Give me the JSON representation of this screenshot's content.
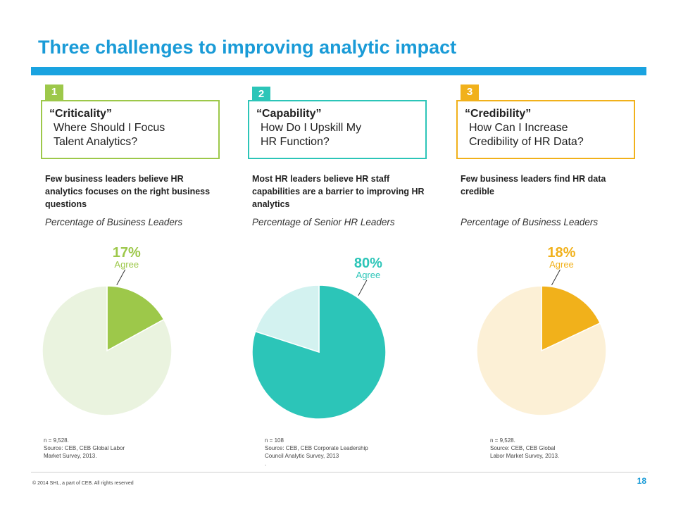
{
  "slide": {
    "title": "Three challenges to improving analytic impact",
    "copyright": "© 2014  SHL, a part of CEB.  All rights reserved",
    "page_number": "18"
  },
  "colors": {
    "title": "#1a9bd7",
    "bar": "#1aa3e0",
    "green": "#9dc84a",
    "green_light": "#eaf3df",
    "teal": "#2cc5b8",
    "teal_light": "#d3f2f0",
    "amber": "#f1b11b",
    "amber_light": "#fcf0d6"
  },
  "challenges": [
    {
      "number": "1",
      "heading": "“Criticality”",
      "question": "Where Should I Focus\nTalent Analytics?",
      "finding": "Few business leaders believe HR analytics focuses on the right business questions",
      "population": "Percentage of Business Leaders",
      "note": "n = 9,528.\nSource: CEB, CEB Global Labor\nMarket Survey, 2013."
    },
    {
      "number": "2",
      "heading": "“Capability”",
      "question": "How Do I Upskill My\nHR Function?",
      "finding": "Most HR leaders believe HR staff capabilities are a barrier to improving HR analytics",
      "population": "Percentage of Senior HR Leaders",
      "note": "n = 108\nSource: CEB, CEB Corporate Leadership\nCouncil  Analytic Survey, 2013\n."
    },
    {
      "number": "3",
      "heading": "“Credibility”",
      "question": "How Can I Increase\nCredibility of HR Data?",
      "finding": "Few business leaders find HR data credible",
      "population": "Percentage of Business Leaders",
      "note": "n = 9,528.\nSource: CEB, CEB Global\nLabor Market Survey, 2013."
    }
  ],
  "chart_data": [
    {
      "type": "pie",
      "slices": [
        {
          "label": "Agree",
          "value": 17,
          "color": "#9dc84a"
        },
        {
          "label": "",
          "value": 83,
          "color": "#eaf3df"
        }
      ],
      "pct_label": "17%",
      "slice_label": "Agree"
    },
    {
      "type": "pie",
      "slices": [
        {
          "label": "Agree",
          "value": 80,
          "color": "#2cc5b8"
        },
        {
          "label": "",
          "value": 20,
          "color": "#d3f2f0"
        }
      ],
      "pct_label": "80%",
      "slice_label": "Agree"
    },
    {
      "type": "pie",
      "slices": [
        {
          "label": "Agree",
          "value": 18,
          "color": "#f1b11b"
        },
        {
          "label": "",
          "value": 82,
          "color": "#fcf0d6"
        }
      ],
      "pct_label": "18%",
      "slice_label": "Agree"
    }
  ]
}
